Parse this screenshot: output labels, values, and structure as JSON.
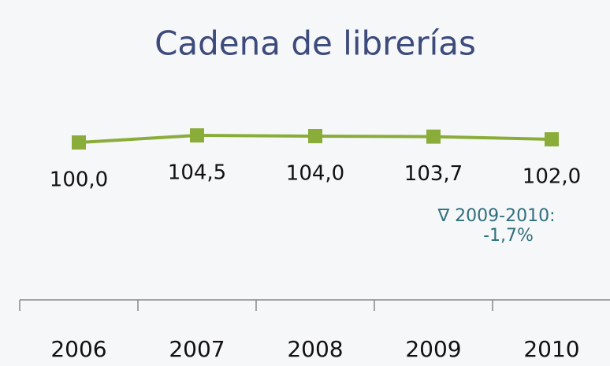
{
  "chart_data": {
    "type": "line",
    "title": "Cadena de librerías",
    "categories": [
      "2006",
      "2007",
      "2008",
      "2009",
      "2010"
    ],
    "values": [
      100,
      104.5,
      104,
      103.7,
      102
    ],
    "value_labels": [
      "100,0",
      "104,5",
      "104,0",
      "103,7",
      "102,0"
    ],
    "color": "#8aad3a",
    "ylim": [
      0,
      120
    ],
    "annotations": [
      "∇ 2009-2010:",
      "-1,7%"
    ]
  }
}
